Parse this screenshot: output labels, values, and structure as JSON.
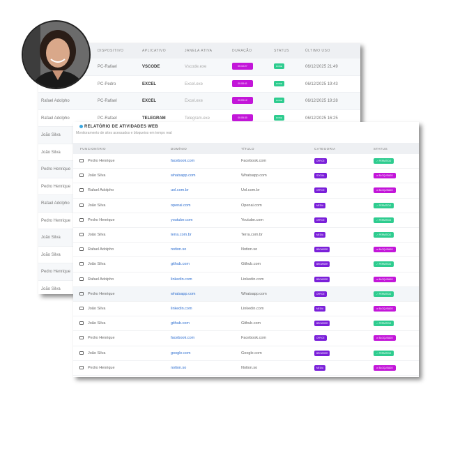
{
  "back_table": {
    "headers": [
      "DISPOSITIVO",
      "APLICATIVO",
      "JANELA ATIVA",
      "DURAÇÃO",
      "STATUS",
      "ÚLTIMO USO"
    ],
    "rows": [
      {
        "func": "",
        "dev": "PC-Rafael",
        "app": "VSCODE",
        "win": "Vscode.exe",
        "dur": "00:10:27",
        "status": "DONE",
        "last": "06/12/2025 21:49"
      },
      {
        "func": "",
        "dev": "PC-Pedro",
        "app": "EXCEL",
        "win": "Excel.exe",
        "dur": "00:08:41",
        "status": "DONE",
        "last": "06/12/2025 19:43"
      },
      {
        "func": "Rafael Adolpho",
        "dev": "PC-Rafael",
        "app": "EXCEL",
        "win": "Excel.exe",
        "dur": "00:09:12",
        "status": "DONE",
        "last": "06/12/2025 19:28"
      },
      {
        "func": "Rafael Adolpho",
        "dev": "PC-Rafael",
        "app": "TELEGRAM",
        "win": "Telegram.exe",
        "dur": "00:05:30",
        "status": "DONE",
        "last": "06/12/2025 16:25"
      },
      {
        "func": "João Silva"
      },
      {
        "func": "João Silva"
      },
      {
        "func": "Pedro Henrique"
      },
      {
        "func": "Pedro Henrique"
      },
      {
        "func": "Rafael Adolpho"
      },
      {
        "func": "Pedro Henrique"
      },
      {
        "func": "João Silva"
      },
      {
        "func": "João Silva"
      },
      {
        "func": "Pedro Henrique"
      },
      {
        "func": "João Silva"
      }
    ]
  },
  "web_report": {
    "title": "RELATÓRIO DE ATIVIDADES WEB",
    "subtitle": "Monitoramento de sites acessados e bloqueios em tempo real",
    "headers": [
      "FUNCIONÁRIO",
      "DOMÍNIO",
      "TÍTULO",
      "CATEGORIA",
      "STATUS"
    ],
    "rows": [
      {
        "func": "Pedro Henrique",
        "dom": "facebook.com",
        "title": "Facebook.com",
        "cat": "OFFICE",
        "status": "PERMITIDO"
      },
      {
        "func": "João Silva",
        "dom": "whatsapp.com",
        "title": "Whatsapp.com",
        "cat": "SOCIAL",
        "status": "BLOQUEADO"
      },
      {
        "func": "Rafael Adolpho",
        "dom": "uol.com.br",
        "title": "Uol.com.br",
        "cat": "OFFICE",
        "status": "BLOQUEADO"
      },
      {
        "func": "João Silva",
        "dom": "openai.com",
        "title": "Openai.com",
        "cat": "MEDIA",
        "status": "PERMITIDO"
      },
      {
        "func": "Pedro Henrique",
        "dom": "youtube.com",
        "title": "Youtube.com",
        "cat": "OFFICE",
        "status": "PERMITIDO"
      },
      {
        "func": "João Silva",
        "dom": "terra.com.br",
        "title": "Terra.com.br",
        "cat": "MEDIA",
        "status": "PERMITIDO"
      },
      {
        "func": "Rafael Adolpho",
        "dom": "notion.so",
        "title": "Notion.so",
        "cat": "BROWSER",
        "status": "BLOQUEADO"
      },
      {
        "func": "João Silva",
        "dom": "github.com",
        "title": "Github.com",
        "cat": "BROWSER",
        "status": "PERMITIDO"
      },
      {
        "func": "Rafael Adolpho",
        "dom": "linkedin.com",
        "title": "Linkedin.com",
        "cat": "BROWSER",
        "status": "BLOQUEADO"
      },
      {
        "func": "Pedro Henrique",
        "dom": "whatsapp.com",
        "title": "Whatsapp.com",
        "cat": "OFFICE",
        "status": "PERMITIDO"
      },
      {
        "func": "João Silva",
        "dom": "linkedin.com",
        "title": "Linkedin.com",
        "cat": "MEDIA",
        "status": "BLOQUEADO"
      },
      {
        "func": "João Silva",
        "dom": "github.com",
        "title": "Github.com",
        "cat": "BROWSER",
        "status": "PERMITIDO"
      },
      {
        "func": "Pedro Henrique",
        "dom": "facebook.com",
        "title": "Facebook.com",
        "cat": "OFFICE",
        "status": "BLOQUEADO"
      },
      {
        "func": "João Silva",
        "dom": "google.com",
        "title": "Google.com",
        "cat": "BROWSER",
        "status": "PERMITIDO"
      },
      {
        "func": "Pedro Henrique",
        "dom": "notion.so",
        "title": "Notion.so",
        "cat": "MEDIA",
        "status": "BLOQUEADO"
      }
    ]
  },
  "colors": {
    "permitido": "#2ecc8f",
    "bloqueado": "#c316d9",
    "category": "#7a1fd9",
    "link": "#2f6fd0"
  }
}
